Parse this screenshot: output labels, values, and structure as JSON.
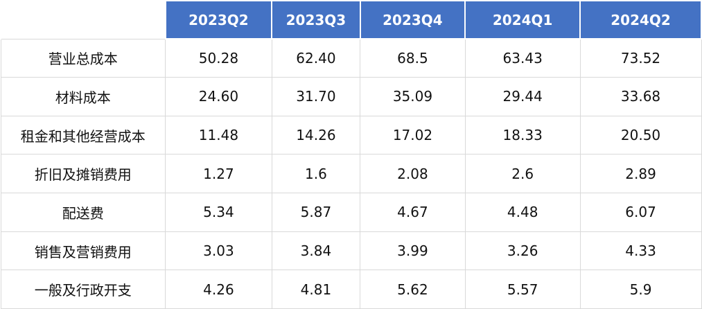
{
  "colors": {
    "header_bg": "#4472C4",
    "header_text": "#FFFFFF",
    "body_bg": "#FFFFFF",
    "body_text": "#111111",
    "grid": "#D9D9D9"
  },
  "table": {
    "corner_label": "",
    "columns": [
      "2023Q2",
      "2023Q3",
      "2023Q4",
      "2024Q1",
      "2024Q2"
    ],
    "rows": [
      {
        "label": "营业总成本",
        "values": [
          "50.28",
          "62.40",
          "68.5",
          "63.43",
          "73.52"
        ]
      },
      {
        "label": "材料成本",
        "values": [
          "24.60",
          "31.70",
          "35.09",
          "29.44",
          "33.68"
        ]
      },
      {
        "label": "租金和其他经营成本",
        "values": [
          "11.48",
          "14.26",
          "17.02",
          "18.33",
          "20.50"
        ]
      },
      {
        "label": "折旧及摊销费用",
        "values": [
          "1.27",
          "1.6",
          "2.08",
          "2.6",
          "2.89"
        ]
      },
      {
        "label": "配送费",
        "values": [
          "5.34",
          "5.87",
          "4.67",
          "4.48",
          "6.07"
        ]
      },
      {
        "label": "销售及营销费用",
        "values": [
          "3.03",
          "3.84",
          "3.99",
          "3.26",
          "4.33"
        ]
      },
      {
        "label": "一般及行政开支",
        "values": [
          "4.26",
          "4.81",
          "5.62",
          "5.57",
          "5.9"
        ]
      }
    ],
    "column_widths_pct": [
      23.5,
      15.2,
      12.6,
      15.0,
      16.4,
      17.3
    ]
  },
  "chart_data": {
    "type": "table",
    "title": "",
    "categories": [
      "2023Q2",
      "2023Q3",
      "2023Q4",
      "2024Q1",
      "2024Q2"
    ],
    "series": [
      {
        "name": "营业总成本",
        "values": [
          50.28,
          62.4,
          68.5,
          63.43,
          73.52
        ]
      },
      {
        "name": "材料成本",
        "values": [
          24.6,
          31.7,
          35.09,
          29.44,
          33.68
        ]
      },
      {
        "name": "租金和其他经营成本",
        "values": [
          11.48,
          14.26,
          17.02,
          18.33,
          20.5
        ]
      },
      {
        "name": "折旧及摊销费用",
        "values": [
          1.27,
          1.6,
          2.08,
          2.6,
          2.89
        ]
      },
      {
        "name": "配送费",
        "values": [
          5.34,
          5.87,
          4.67,
          4.48,
          6.07
        ]
      },
      {
        "name": "销售及营销费用",
        "values": [
          3.03,
          3.84,
          3.99,
          3.26,
          4.33
        ]
      },
      {
        "name": "一般及行政开支",
        "values": [
          4.26,
          4.81,
          5.62,
          5.57,
          5.9
        ]
      }
    ],
    "legend": "none",
    "grid": true
  }
}
